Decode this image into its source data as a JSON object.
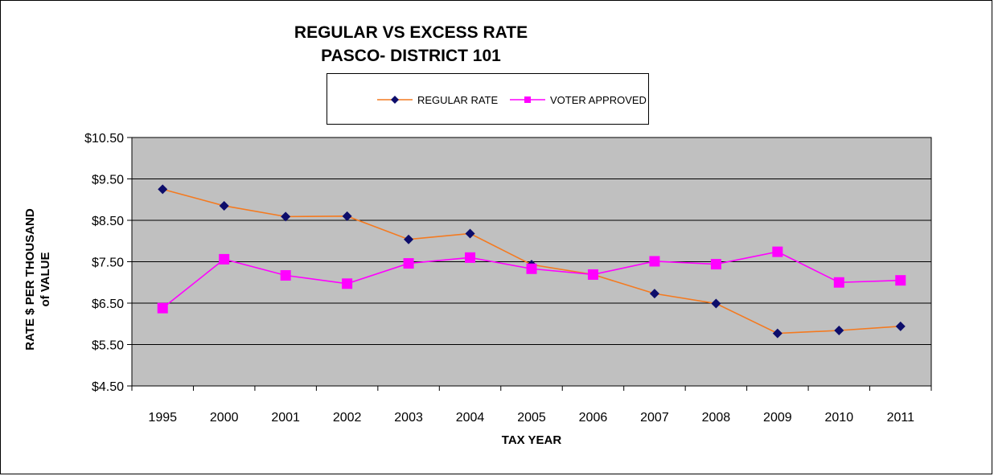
{
  "chart_data": {
    "type": "line",
    "title": "REGULAR VS EXCESS RATE",
    "subtitle": "PASCO- DISTRICT 101",
    "xlabel": "TAX YEAR",
    "ylabel_line1": "RATE $ PER THOUSAND",
    "ylabel_line2": "of VALUE",
    "categories": [
      "1995",
      "2000",
      "2001",
      "2002",
      "2003",
      "2004",
      "2005",
      "2006",
      "2007",
      "2008",
      "2009",
      "2010",
      "2011"
    ],
    "y_ticks": [
      "$10.50",
      "$9.50",
      "$8.50",
      "$7.50",
      "$6.50",
      "$5.50",
      "$4.50"
    ],
    "ylim": [
      4.5,
      10.5
    ],
    "y_step": 1,
    "grid": true,
    "legend_position": "top",
    "plot_background": "#c0c0c0",
    "series": [
      {
        "name": "REGULAR RATE",
        "line_color": "#f47a20",
        "marker_color": "#0d0d6b",
        "marker": "diamond",
        "values": [
          9.25,
          8.85,
          8.59,
          8.6,
          8.04,
          8.18,
          7.43,
          7.19,
          6.73,
          6.49,
          5.77,
          5.84,
          5.94
        ]
      },
      {
        "name": "VOTER APPROVED",
        "line_color": "#ff00ff",
        "marker_color": "#ff00ff",
        "marker": "square",
        "values": [
          6.38,
          7.56,
          7.17,
          6.97,
          7.46,
          7.6,
          7.33,
          7.19,
          7.51,
          7.44,
          7.74,
          7.0,
          7.05
        ]
      }
    ]
  }
}
